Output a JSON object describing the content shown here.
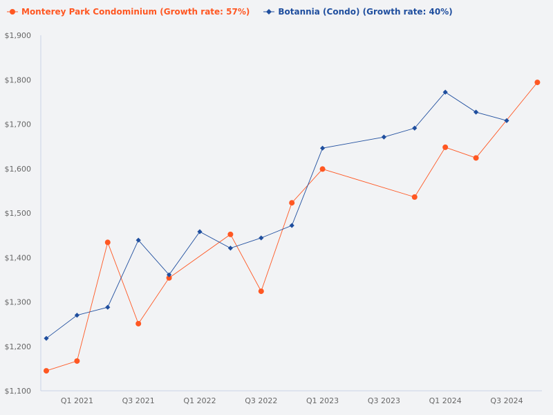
{
  "chart_data": {
    "type": "line",
    "title": "",
    "xlabel": "",
    "ylabel": "",
    "x": [
      "Q4 2020",
      "Q1 2021",
      "Q2 2021",
      "Q3 2021",
      "Q4 2021",
      "Q1 2022",
      "Q2 2022",
      "Q3 2022",
      "Q4 2022",
      "Q1 2023",
      "Q2 2023",
      "Q3 2023",
      "Q4 2023",
      "Q1 2024",
      "Q2 2024",
      "Q3 2024",
      "Q4 2024"
    ],
    "x_tick_labels": [
      "Q1 2021",
      "Q3 2021",
      "Q1 2022",
      "Q3 2022",
      "Q1 2023",
      "Q3 2023",
      "Q1 2024",
      "Q3 2024"
    ],
    "ylim": [
      1100,
      1900
    ],
    "y_ticks": [
      1100,
      1200,
      1300,
      1400,
      1500,
      1600,
      1700,
      1800,
      1900
    ],
    "y_tick_format": "$",
    "grid": false,
    "legend_position": "top-left",
    "series": [
      {
        "name": "Monterey Park Condominium (Growth rate: 57%)",
        "color": "#ff5722",
        "marker": "circle",
        "values": [
          1145,
          1167,
          1434,
          1251,
          1354,
          null,
          1452,
          1324,
          1523,
          1599,
          null,
          null,
          1536,
          1648,
          1624,
          null,
          1794
        ]
      },
      {
        "name": "Botannia (Condo) (Growth rate: 40%)",
        "color": "#1f4e9e",
        "marker": "diamond",
        "values": [
          1218,
          1270,
          1288,
          1439,
          1361,
          1458,
          1421,
          1444,
          1472,
          1646,
          null,
          1671,
          1691,
          1772,
          1727,
          1708,
          null
        ]
      }
    ]
  }
}
